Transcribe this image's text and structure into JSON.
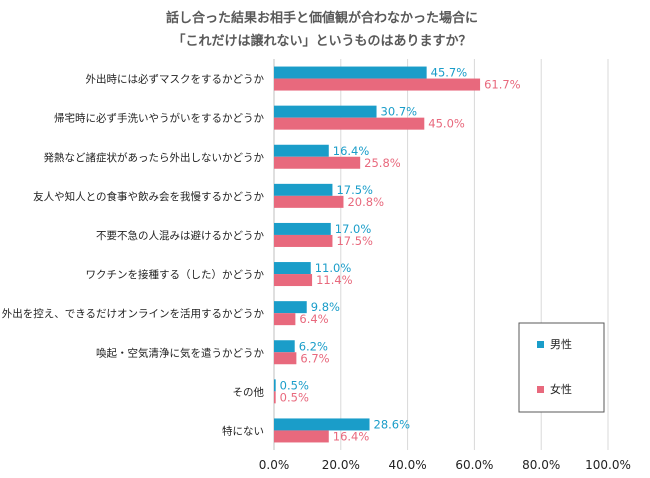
{
  "chart_data": {
    "type": "bar",
    "orientation": "horizontal",
    "title": [
      "話し合った結果お相手と価値観が合わなかった場合に",
      "「これだけは譲れない」というものはありますか？"
    ],
    "categories": [
      "外出時には必ずマスクをするかどうか",
      "帰宅時に必ず手洗いやうがいをするかどうか",
      "発熱など諸症状があったら外出しないかどうか",
      "友人や知人との食事や飲み会を我慢するかどうか",
      "不要不急の人混みは避けるかどうか",
      "ワクチンを接種する（した）かどうか",
      "外出を控え、できるだけオンラインを活用するかどうか",
      "喚起・空気清浄に気を遣うかどうか",
      "その他",
      "特にない"
    ],
    "series": [
      {
        "name": "男性",
        "color": "#1a9dc9",
        "values": [
          45.7,
          30.7,
          16.4,
          17.5,
          17.0,
          11.0,
          9.8,
          6.2,
          0.5,
          28.6
        ]
      },
      {
        "name": "女性",
        "color": "#e8697d",
        "values": [
          61.7,
          45.0,
          25.8,
          20.8,
          17.5,
          11.4,
          6.4,
          6.7,
          0.5,
          16.4
        ]
      }
    ],
    "value_suffix": "%",
    "xlim": [
      0,
      100
    ],
    "xticks": [
      "0.0%",
      "20.0%",
      "40.0%",
      "60.0%",
      "80.0%",
      "100.0%"
    ],
    "grid": true,
    "legend_position": "right"
  }
}
